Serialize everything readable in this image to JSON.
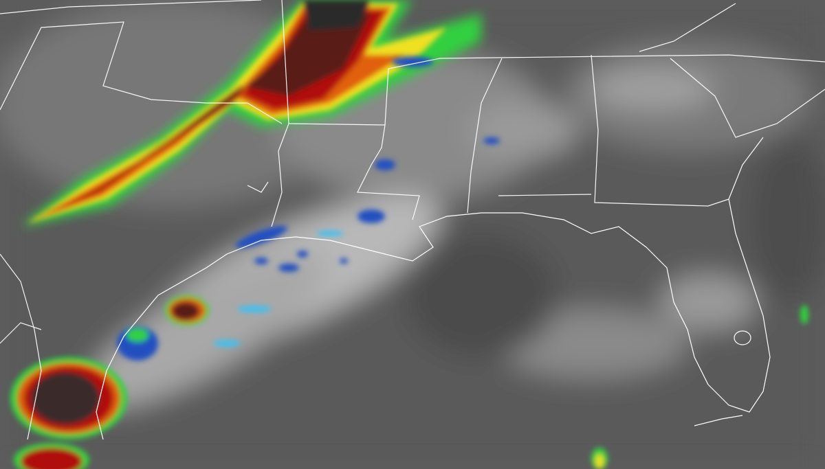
{
  "colors": {
    "background": "#5e5e5e",
    "ocean_gulf": "#555555",
    "cloud_light": "#c9c9c9",
    "cloud_mid": "#9a9a9a",
    "storm_core": "#2a1a1a",
    "storm_red": "#b01010",
    "storm_orange": "#e06010",
    "storm_yellow": "#f0e020",
    "storm_green": "#30d040",
    "storm_blue": "#2050c0",
    "storm_cyan": "#40c0f0",
    "boundary": "#ffffff"
  }
}
